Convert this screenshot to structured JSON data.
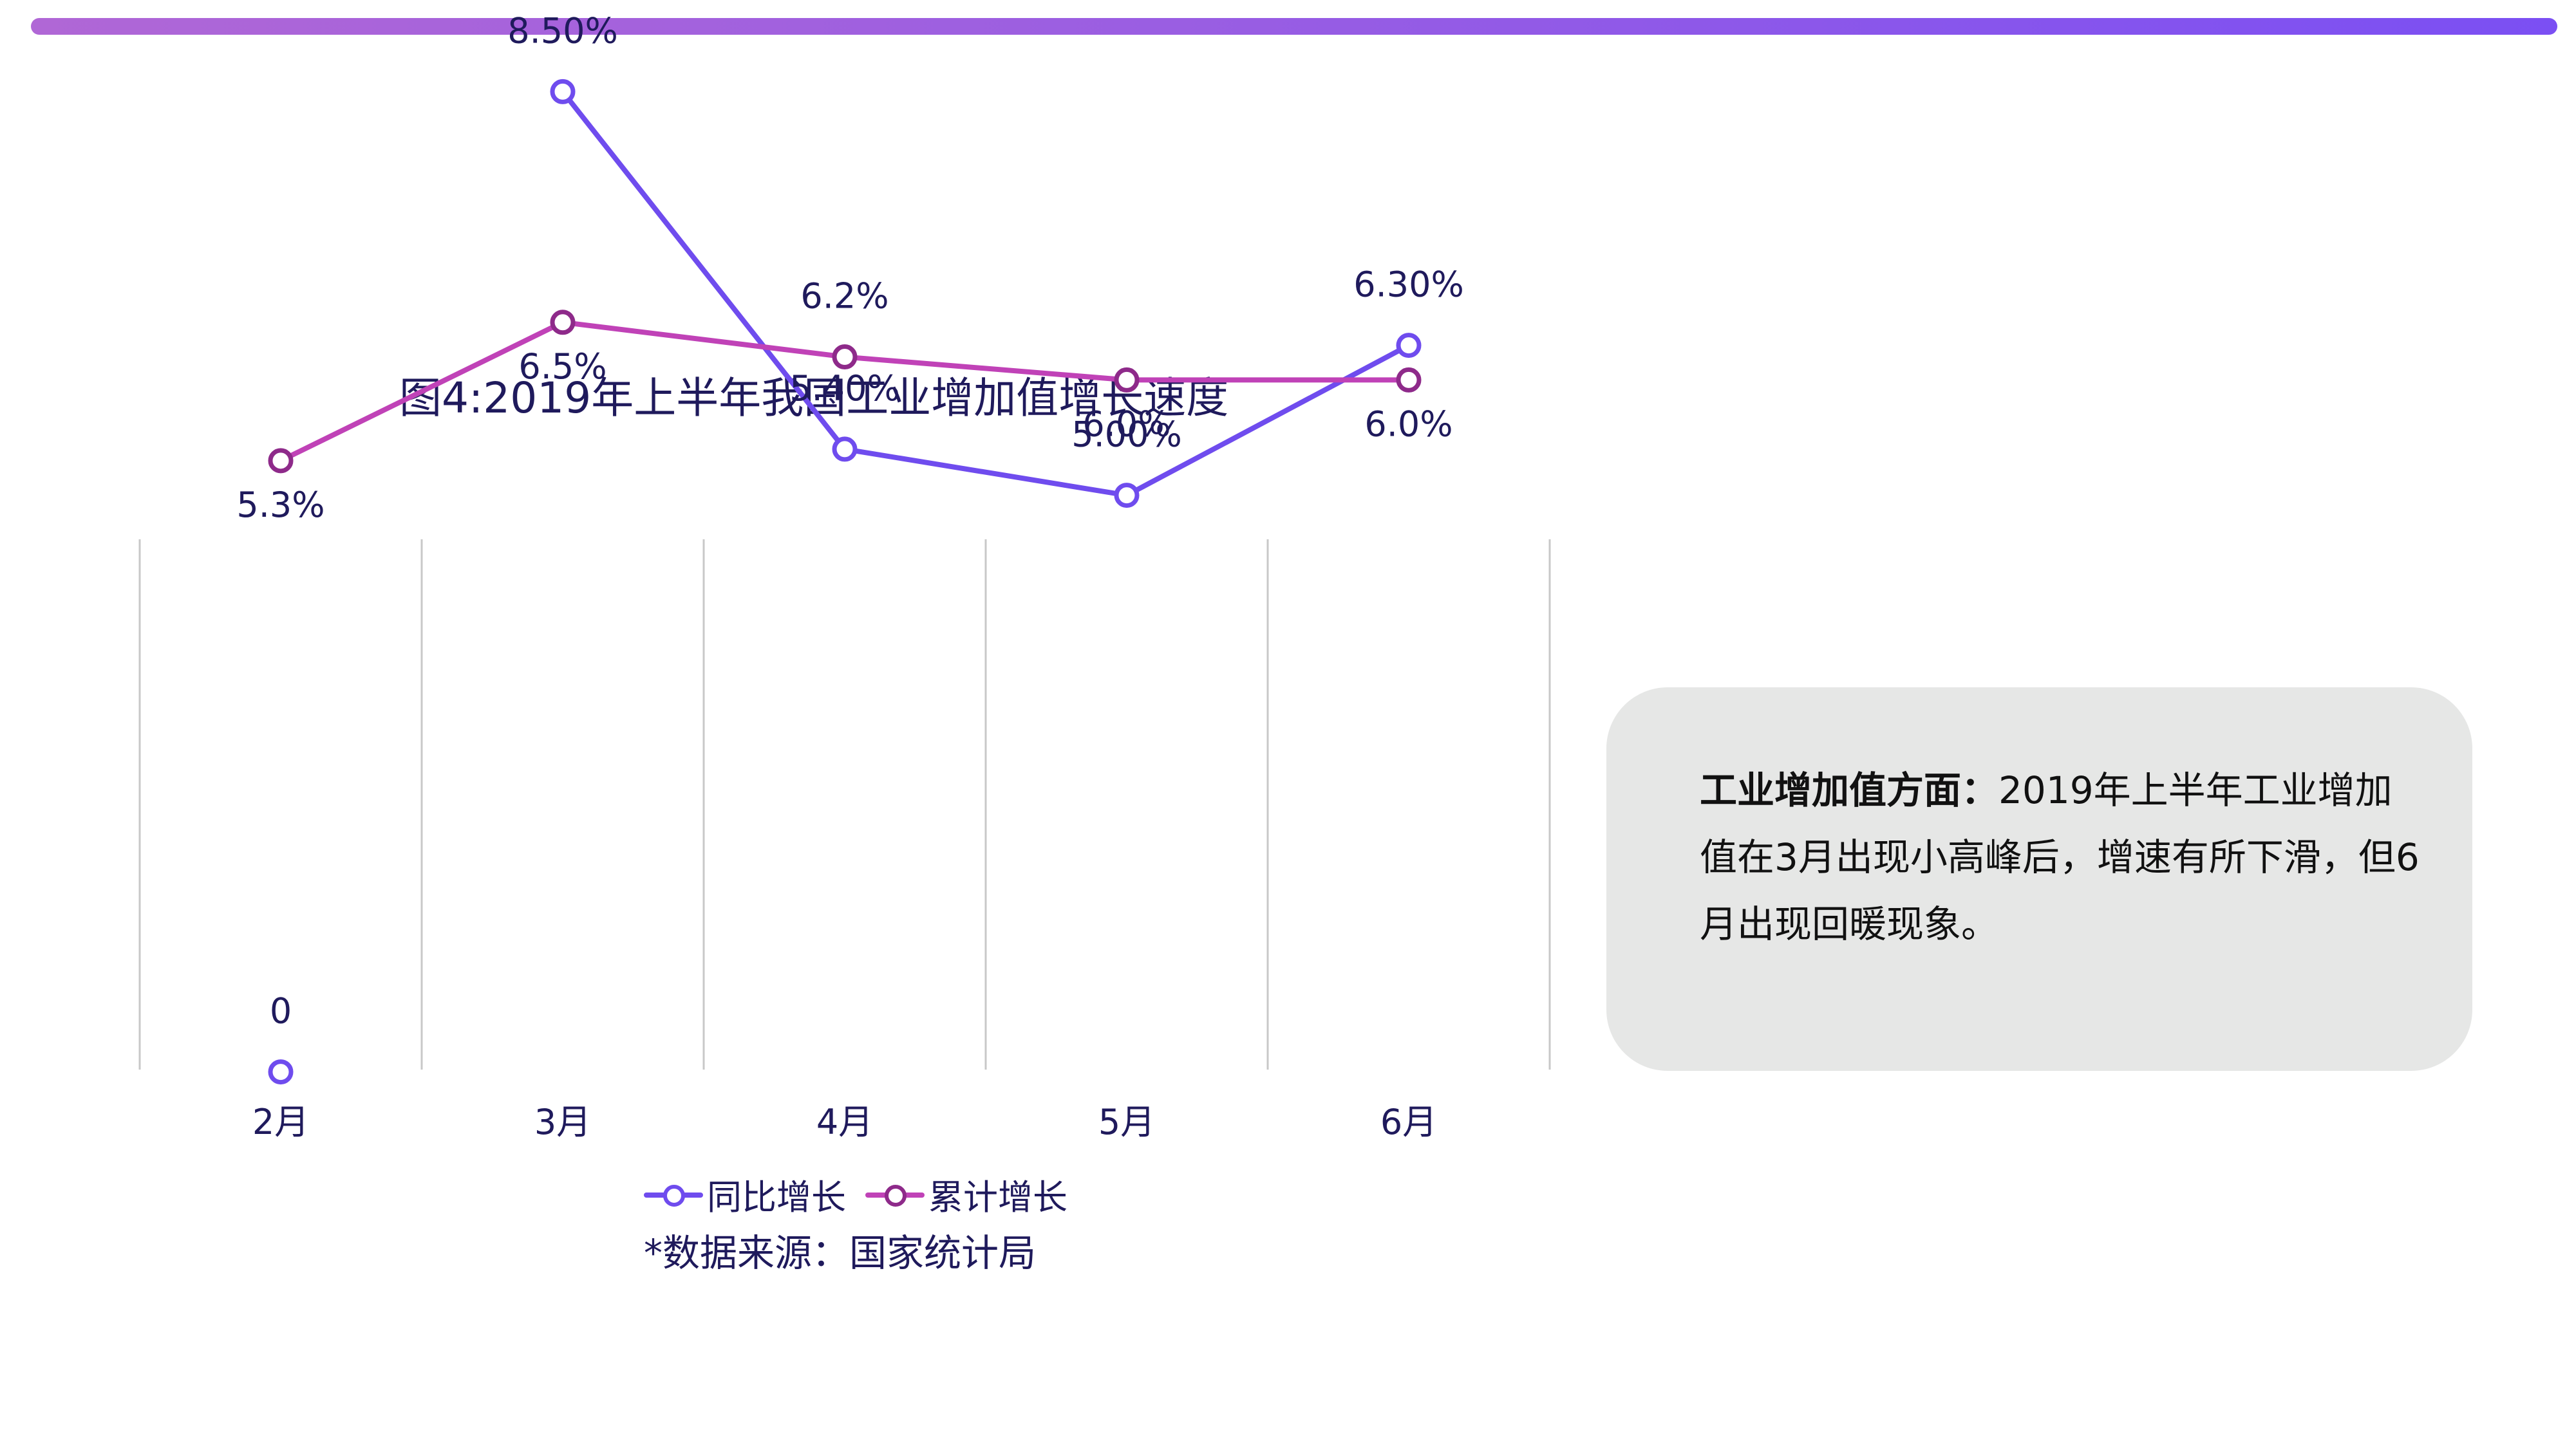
{
  "title": "图4:2019年上半年我国工业增加值增长速度",
  "source": "*数据来源：国家统计局",
  "note": {
    "bold": "工业增加值方面：",
    "text": "2019年上半年工业增加值在3月出现小高峰后，增速有所下滑，但6月出现回暖现象。"
  },
  "colors": {
    "accent_bar_start": "#b067d6",
    "accent_bar_end": "#7b4ff3",
    "series_yoy": "#6f4cee",
    "series_cum": "#c042b7",
    "marker_cum": "#8e2a8a",
    "text": "#1f1a5c",
    "grid": "#c8c8c8",
    "note_bg": "#e6e7e6"
  },
  "chart_data": {
    "type": "line",
    "title": "图4:2019年上半年我国工业增加值增长速度",
    "categories": [
      "2月",
      "3月",
      "4月",
      "5月",
      "6月"
    ],
    "ylim": [
      0,
      9
    ],
    "grid": "vertical",
    "legend_position": "bottom",
    "series": [
      {
        "name": "同比增长",
        "values": [
          0,
          8.5,
          5.4,
          5.0,
          6.3
        ],
        "labels": [
          "0",
          "8.50%",
          "5.40%",
          "5.00%",
          "6.30%"
        ]
      },
      {
        "name": "累计增长",
        "values": [
          5.3,
          6.5,
          6.2,
          6.0,
          6.0
        ],
        "labels": [
          "5.3%",
          "6.5%",
          "6.2%",
          "6.0%",
          "6.0%"
        ]
      }
    ]
  }
}
